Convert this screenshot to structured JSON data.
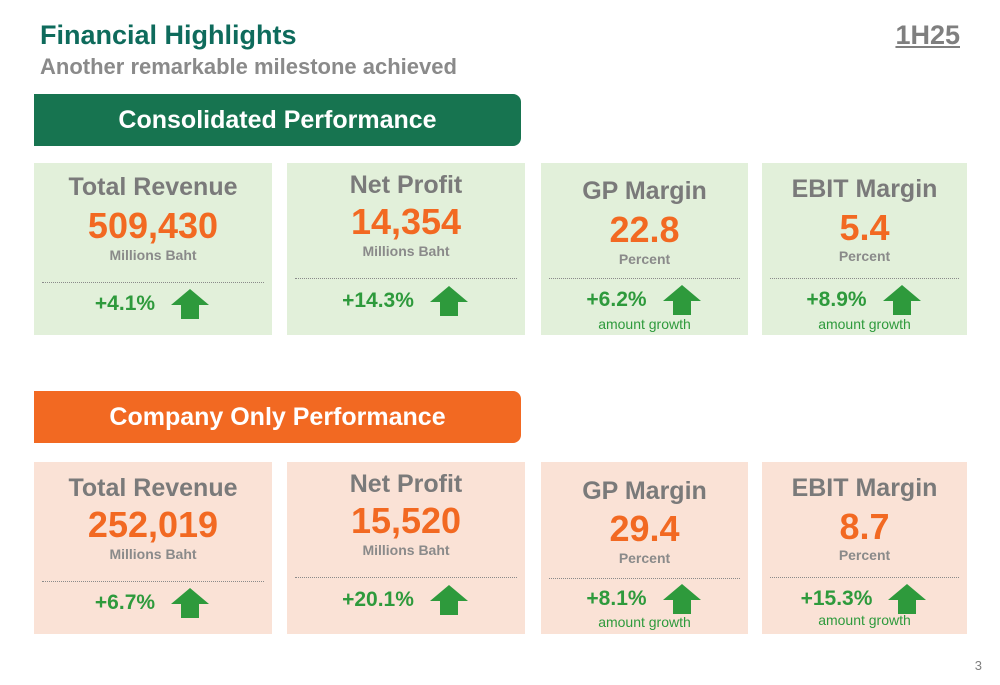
{
  "header": {
    "title": "Financial Highlights",
    "subtitle": "Another remarkable milestone achieved",
    "period": "1H25"
  },
  "consolidated": {
    "banner": "Consolidated Performance",
    "color": "#177450",
    "cards": [
      {
        "label": "Total Revenue",
        "value": "509,430",
        "unit": "Millions Baht",
        "growth": "+4.1%",
        "note": ""
      },
      {
        "label": "Net Profit",
        "value": "14,354",
        "unit": "Millions Baht",
        "growth": "+14.3%",
        "note": ""
      },
      {
        "label": "GP Margin",
        "value": "22.8",
        "unit": "Percent",
        "growth": "+6.2%",
        "note": "amount growth"
      },
      {
        "label": "EBIT Margin",
        "value": "5.4",
        "unit": "Percent",
        "growth": "+8.9%",
        "note": "amount growth"
      }
    ]
  },
  "company": {
    "banner": "Company Only Performance",
    "color": "#f26922",
    "cards": [
      {
        "label": "Total Revenue",
        "value": "252,019",
        "unit": "Millions Baht",
        "growth": "+6.7%",
        "note": ""
      },
      {
        "label": "Net Profit",
        "value": "15,520",
        "unit": "Millions Baht",
        "growth": "+20.1%",
        "note": ""
      },
      {
        "label": "GP Margin",
        "value": "29.4",
        "unit": "Percent",
        "growth": "+8.1%",
        "note": "amount growth"
      },
      {
        "label": "EBIT Margin",
        "value": "8.7",
        "unit": "Percent",
        "growth": "+15.3%",
        "note": "amount growth"
      }
    ]
  },
  "icons": {
    "growth": "up-arrow-icon"
  },
  "colors": {
    "title": "#0e6b5c",
    "value": "#f26922",
    "growth": "#2e9a3c",
    "green_card": "#e2f0da",
    "peach_card": "#fae2d6"
  },
  "footer": {
    "page_number": "3"
  }
}
